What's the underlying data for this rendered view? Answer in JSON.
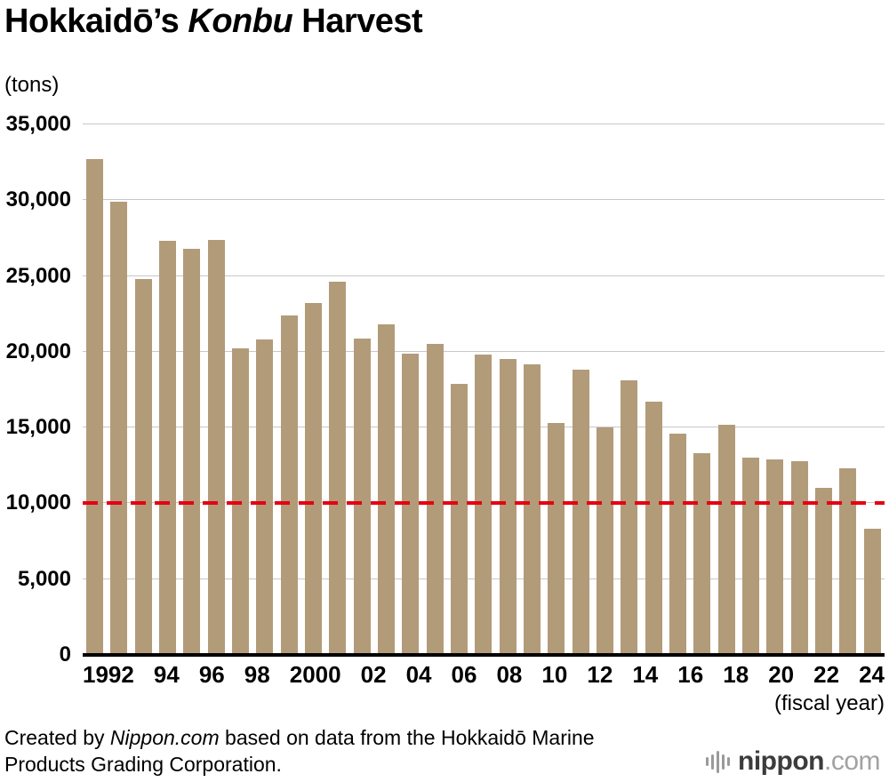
{
  "chart_data": {
    "type": "bar",
    "title": "Hokkaidō's Konbu Harvest",
    "title_pre": "Hokkaidō’s ",
    "title_italic": "Konbu",
    "title_post": " Harvest",
    "ylabel": "(tons)",
    "xlabel": "(fiscal year)",
    "years": [
      1992,
      1993,
      1994,
      1995,
      1996,
      1997,
      1998,
      1999,
      2000,
      2001,
      2002,
      2003,
      2004,
      2005,
      2006,
      2007,
      2008,
      2009,
      2010,
      2011,
      2012,
      2013,
      2014,
      2015,
      2016,
      2017,
      2018,
      2019,
      2020,
      2021,
      2022,
      2023,
      2024
    ],
    "values": [
      32700,
      29900,
      24800,
      27300,
      26800,
      27400,
      20200,
      20800,
      22400,
      23200,
      24600,
      20900,
      21800,
      19900,
      20500,
      17900,
      19800,
      19500,
      19200,
      15300,
      18800,
      15000,
      18100,
      16700,
      14600,
      13300,
      15200,
      13000,
      12900,
      12800,
      11000,
      12300,
      8300
    ],
    "x_tick_labels": [
      "1992",
      "",
      "94",
      "",
      "96",
      "",
      "98",
      "",
      "2000",
      "",
      "02",
      "",
      "04",
      "",
      "06",
      "",
      "08",
      "",
      "10",
      "",
      "12",
      "",
      "14",
      "",
      "16",
      "",
      "18",
      "",
      "20",
      "",
      "22",
      "",
      "24"
    ],
    "y_tick_labels": [
      "0",
      "5,000",
      "10,000",
      "15,000",
      "20,000",
      "25,000",
      "30,000",
      "35,000"
    ],
    "ylim": [
      0,
      35000
    ],
    "ytick_step": 5000,
    "grid": true,
    "legend": false,
    "reference_line_value": 10000,
    "bar_color": "#b29b79",
    "grid_color": "#c8c8c8",
    "reference_color": "#e60012",
    "axis_color": "#000000"
  },
  "footer": {
    "pre": "Created by ",
    "italic": "Nippon.com",
    "post": " based on data from the Hokkaidō Marine Products Grading Corporation."
  },
  "logo": {
    "icon": "soundwave-icon",
    "name": "nippon",
    "tld": ".com"
  }
}
